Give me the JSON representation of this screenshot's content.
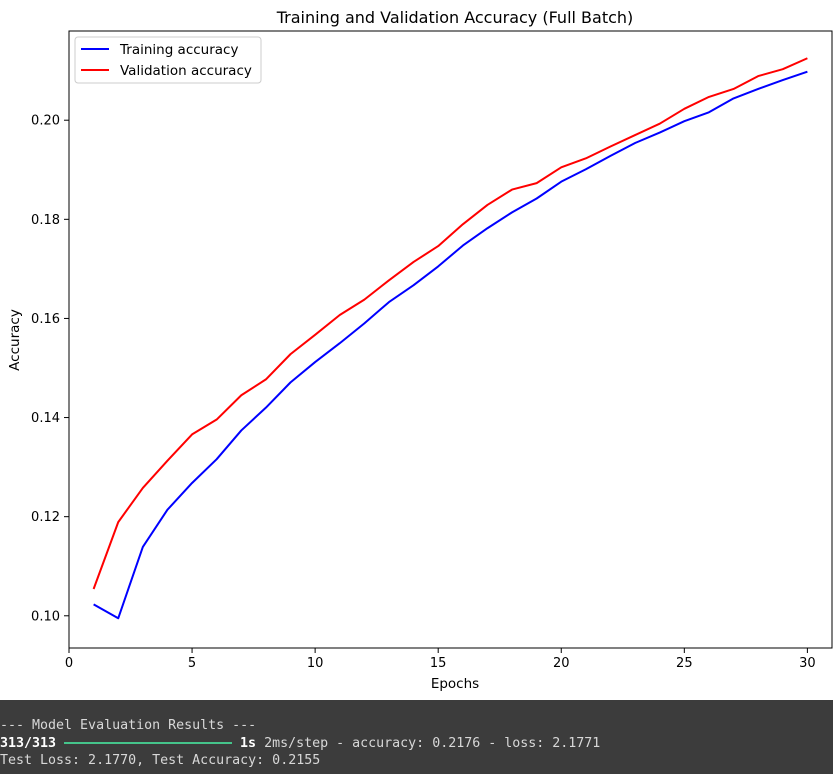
{
  "chart_data": {
    "type": "line",
    "title": "Training and Validation Accuracy (Full Batch)",
    "xlabel": "Epochs",
    "ylabel": "Accuracy",
    "xlim": [
      0,
      31
    ],
    "ylim": [
      0.0935,
      0.218
    ],
    "xticks": [
      0,
      5,
      10,
      15,
      20,
      25,
      30
    ],
    "yticks": [
      0.1,
      0.12,
      0.14,
      0.16,
      0.18,
      0.2
    ],
    "ytick_labels": [
      "0.10",
      "0.12",
      "0.14",
      "0.16",
      "0.18",
      "0.20"
    ],
    "grid": false,
    "legend_position": "top-left",
    "x": [
      1,
      2,
      3,
      4,
      5,
      6,
      7,
      8,
      9,
      10,
      11,
      12,
      13,
      14,
      15,
      16,
      17,
      18,
      19,
      20,
      21,
      22,
      23,
      24,
      25,
      26,
      27,
      28,
      29,
      30
    ],
    "series": [
      {
        "name": "Training accuracy",
        "color": "#0000ff",
        "values": [
          0.1023,
          0.0995,
          0.1139,
          0.1214,
          0.1268,
          0.1316,
          0.1374,
          0.142,
          0.1471,
          0.1512,
          0.155,
          0.159,
          0.1633,
          0.1667,
          0.1705,
          0.1747,
          0.1782,
          0.1814,
          0.1842,
          0.1876,
          0.1901,
          0.1928,
          0.1954,
          0.1975,
          0.1998,
          0.2016,
          0.2044,
          0.2063,
          0.2081,
          0.2098
        ]
      },
      {
        "name": "Validation accuracy",
        "color": "#ff0000",
        "values": [
          0.1054,
          0.1189,
          0.1258,
          0.1313,
          0.1366,
          0.1396,
          0.1445,
          0.1477,
          0.1528,
          0.1567,
          0.1607,
          0.1638,
          0.1677,
          0.1714,
          0.1746,
          0.179,
          0.1829,
          0.186,
          0.1873,
          0.1905,
          0.1923,
          0.1947,
          0.197,
          0.1993,
          0.2023,
          0.2047,
          0.2063,
          0.2089,
          0.2103,
          0.2125
        ]
      }
    ]
  },
  "console": {
    "line1": "--- Model Evaluation Results ---",
    "progress_count": "313/313",
    "progress_fraction": 1.0,
    "elapsed": "1s",
    "step_info": "2ms/step - accuracy: 0.2176 - loss: 2.1771",
    "line3": "Test Loss: 2.1770, Test Accuracy: 0.2155"
  }
}
